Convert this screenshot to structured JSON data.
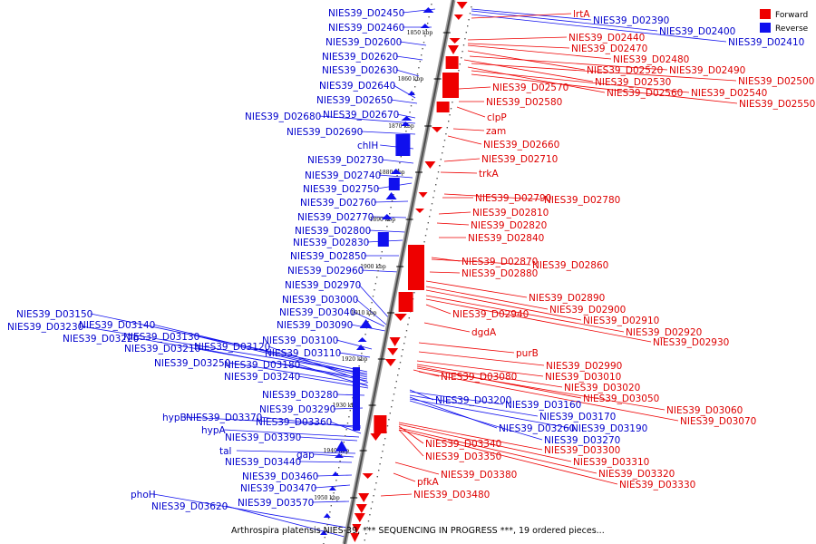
{
  "caption": "Arthrospira platensis NIES-39, *** SEQUENCING IN PROGRESS ***, 19 ordered pieces...",
  "legend": [
    {
      "label": "Forward",
      "color": "#ee0000"
    },
    {
      "label": "Reverse",
      "color": "#1010ee"
    }
  ],
  "colors": {
    "forward": "#ee0000",
    "reverse": "#1010ee",
    "forward_text": "#dd0000",
    "reverse_text": "#0000cc",
    "axis": "#555555"
  },
  "scale": {
    "unit": "kbp",
    "ticks": [
      "1850 kbp",
      "1860 kbp",
      "1870 kbp",
      "1880 kbp",
      "1890 kbp",
      "1900 kbp",
      "1910 kbp",
      "1920 kbp",
      "1930 kbp",
      "1940 kbp",
      "1950 kbp"
    ]
  },
  "reverse_genes": [
    "NIES39_D02450",
    "NIES39_D02460",
    "NIES39_D02600",
    "NIES39_D02620",
    "NIES39_D02630",
    "NIES39_D02640",
    "NIES39_D02650",
    "NIES39_D02670",
    "NIES39_D02680",
    "NIES39_D02690",
    "chlH",
    "NIES39_D02730",
    "NIES39_D02740",
    "NIES39_D02750",
    "NIES39_D02760",
    "NIES39_D02770",
    "NIES39_D02800",
    "NIES39_D02830",
    "NIES39_D02850",
    "NIES39_D02960",
    "NIES39_D02970",
    "NIES39_D03000",
    "NIES39_D03040",
    "NIES39_D03090",
    "NIES39_D03150",
    "NIES39_D03230",
    "NIES39_D03140",
    "NIES39_D03130",
    "NIES39_D03220",
    "NIES39_D03100",
    "NIES39_D03210",
    "NIES39_D03120",
    "NIES39_D03110",
    "NIES39_D03250",
    "NIES39_D03180",
    "NIES39_D03240",
    "NIES39_D03280",
    "NIES39_D03290",
    "hypB",
    "NIES39_D03370",
    "NIES39_D03360",
    "hypA",
    "NIES39_D03390",
    "tal",
    "gap",
    "NIES39_D03440",
    "NIES39_D03460",
    "NIES39_D03470",
    "phoH",
    "NIES39_D03570",
    "NIES39_D03620",
    "NIES39_D02390",
    "NIES39_D02400",
    "NIES39_D02410",
    "NIES39_D03200",
    "NIES39_D03160",
    "NIES39_D03170",
    "NIES39_D03260",
    "NIES39_D03190",
    "NIES39_D03270"
  ],
  "forward_genes": [
    "lrtA",
    "NIES39_D02440",
    "NIES39_D02470",
    "NIES39_D02480",
    "NIES39_D02520",
    "NIES39_D02490",
    "NIES39_D02530",
    "NIES39_D02500",
    "NIES39_D02570",
    "NIES39_D02560",
    "NIES39_D02540",
    "NIES39_D02580",
    "NIES39_D02550",
    "clpP",
    "zam",
    "NIES39_D02660",
    "NIES39_D02710",
    "trkA",
    "NIES39_D02790",
    "NIES39_D02780",
    "NIES39_D02810",
    "NIES39_D02820",
    "NIES39_D02840",
    "NIES39_D02870",
    "NIES39_D02860",
    "NIES39_D02880",
    "NIES39_D02890",
    "NIES39_D02900",
    "NIES39_D02940",
    "NIES39_D02910",
    "dgdA",
    "NIES39_D02920",
    "NIES39_D02930",
    "purB",
    "NIES39_D02990",
    "NIES39_D03080",
    "NIES39_D03010",
    "NIES39_D03020",
    "NIES39_D03050",
    "NIES39_D03060",
    "NIES39_D03070",
    "NIES39_D03340",
    "NIES39_D03300",
    "NIES39_D03350",
    "NIES39_D03310",
    "NIES39_D03380",
    "NIES39_D03320",
    "pfkA",
    "NIES39_D03330",
    "NIES39_D03480"
  ]
}
